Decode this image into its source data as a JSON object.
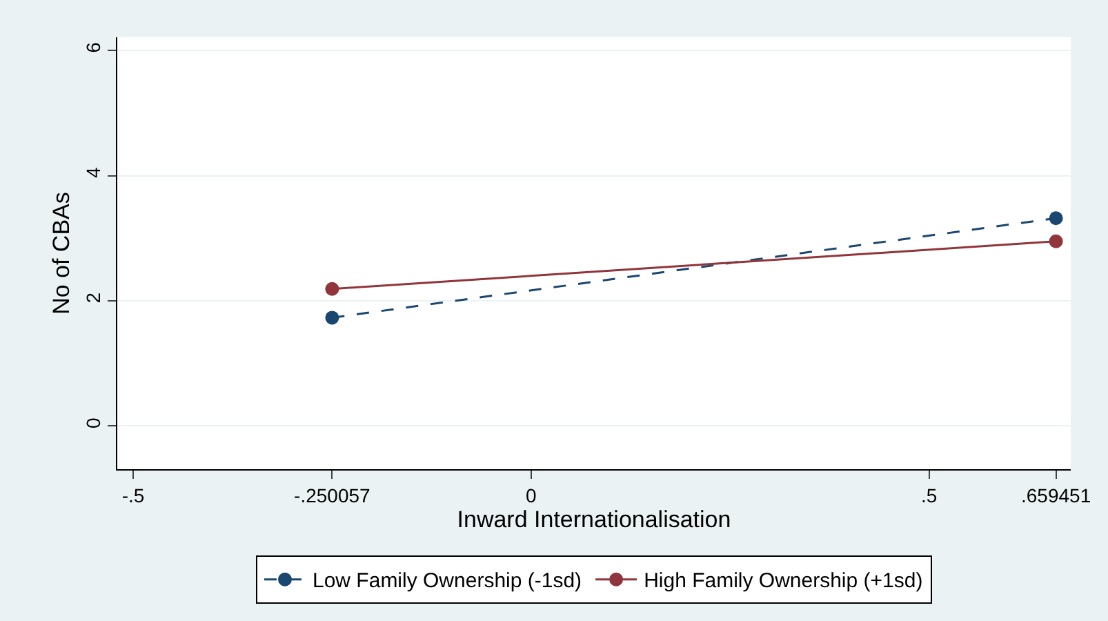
{
  "chart_data": {
    "type": "line",
    "xlabel": "Inward Internationalisation",
    "ylabel": "No of CBAs",
    "x": [
      -0.250057,
      0.659451
    ],
    "series": [
      {
        "name": "Low Family Ownership (-1sd)",
        "color": "#1a476f",
        "values": [
          1.73,
          3.32
        ],
        "line_style": "dashed"
      },
      {
        "name": "High Family Ownership (+1sd)",
        "color": "#90353b",
        "values": [
          2.19,
          2.95
        ],
        "line_style": "solid"
      }
    ],
    "xlim": [
      -0.52,
      0.678
    ],
    "xticks": [
      {
        "value": -0.5,
        "label": "-.5"
      },
      {
        "value": -0.250057,
        "label": "-.250057"
      },
      0,
      {
        "value": 0.5,
        "label": ".5"
      },
      {
        "value": 0.659451,
        "label": ".659451"
      }
    ],
    "ylim": [
      -0.69,
      6.21
    ],
    "yticks": [
      0,
      2,
      4,
      6
    ],
    "grid": "y",
    "legend": "bottom",
    "marker": "circle"
  }
}
